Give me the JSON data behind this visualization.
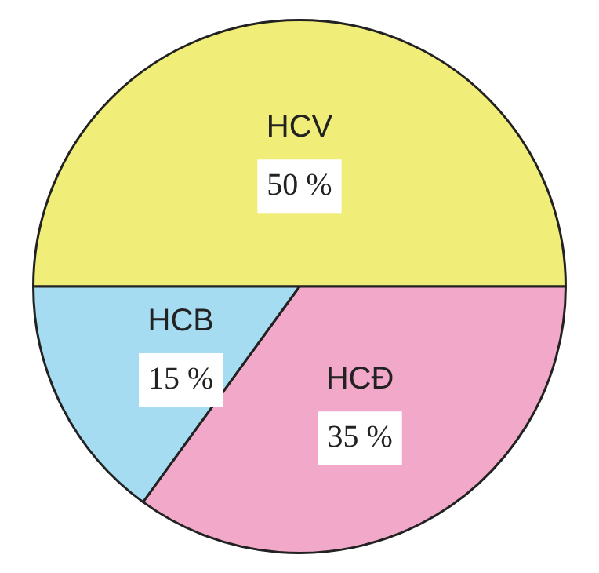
{
  "chart_data": {
    "type": "pie",
    "categories": [
      "HCV",
      "HCĐ",
      "HCB"
    ],
    "values": [
      50,
      35,
      15
    ],
    "colors": [
      "#f0ee78",
      "#f2a8c8",
      "#a6dcf2"
    ],
    "value_labels": [
      "50 %",
      "35 %",
      "15 %"
    ],
    "legend": false
  }
}
